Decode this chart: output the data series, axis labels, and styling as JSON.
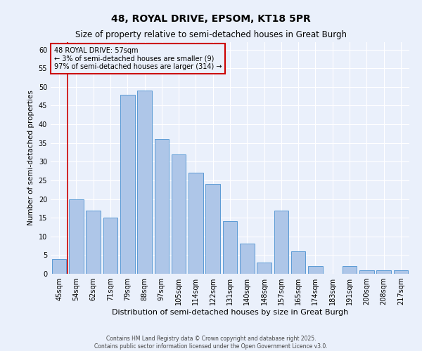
{
  "title": "48, ROYAL DRIVE, EPSOM, KT18 5PR",
  "subtitle": "Size of property relative to semi-detached houses in Great Burgh",
  "xlabel": "Distribution of semi-detached houses by size in Great Burgh",
  "ylabel": "Number of semi-detached properties",
  "categories": [
    "45sqm",
    "54sqm",
    "62sqm",
    "71sqm",
    "79sqm",
    "88sqm",
    "97sqm",
    "105sqm",
    "114sqm",
    "122sqm",
    "131sqm",
    "140sqm",
    "148sqm",
    "157sqm",
    "165sqm",
    "174sqm",
    "183sqm",
    "191sqm",
    "200sqm",
    "208sqm",
    "217sqm"
  ],
  "values": [
    4,
    20,
    17,
    15,
    48,
    49,
    36,
    32,
    27,
    24,
    14,
    8,
    3,
    17,
    6,
    2,
    0,
    2,
    1,
    1,
    1
  ],
  "bar_color": "#aec6e8",
  "bar_edge_color": "#5b9bd5",
  "background_color": "#eaf0fb",
  "grid_color": "#ffffff",
  "vline_x_index": 1,
  "vline_color": "#cc0000",
  "annotation_title": "48 ROYAL DRIVE: 57sqm",
  "annotation_line1": "← 3% of semi-detached houses are smaller (9)",
  "annotation_line2": "97% of semi-detached houses are larger (314) →",
  "annotation_box_color": "#cc0000",
  "ylim": [
    0,
    62
  ],
  "yticks": [
    0,
    5,
    10,
    15,
    20,
    25,
    30,
    35,
    40,
    45,
    50,
    55,
    60
  ],
  "title_fontsize": 10,
  "subtitle_fontsize": 8.5,
  "xlabel_fontsize": 8,
  "ylabel_fontsize": 7.5,
  "tick_fontsize": 7,
  "annotation_fontsize": 7,
  "footer_fontsize": 5.5,
  "footer_line1": "Contains HM Land Registry data © Crown copyright and database right 2025.",
  "footer_line2": "Contains public sector information licensed under the Open Government Licence v3.0."
}
